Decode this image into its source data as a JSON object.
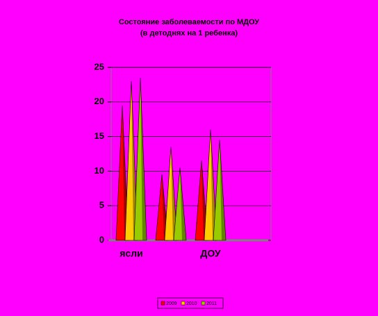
{
  "chart_data": {
    "type": "cone",
    "title": "Состояние заболеваемости по МДОУ",
    "subtitle": "(в детоднях на 1 ребенка)",
    "categories": [
      "ясли",
      null,
      "ДОУ"
    ],
    "series": [
      {
        "name": "2009",
        "color": "#ff0000",
        "values": [
          19.5,
          9.5,
          11.5
        ]
      },
      {
        "name": "2010",
        "color": "#ffcc00",
        "values": [
          23,
          13.5,
          16
        ]
      },
      {
        "name": "2011",
        "color": "#99cc00",
        "values": [
          23.5,
          10.5,
          14.5
        ]
      }
    ],
    "ylim": [
      0,
      25
    ],
    "yticks": [
      0,
      5,
      10,
      15,
      20,
      25
    ],
    "grid": true
  }
}
